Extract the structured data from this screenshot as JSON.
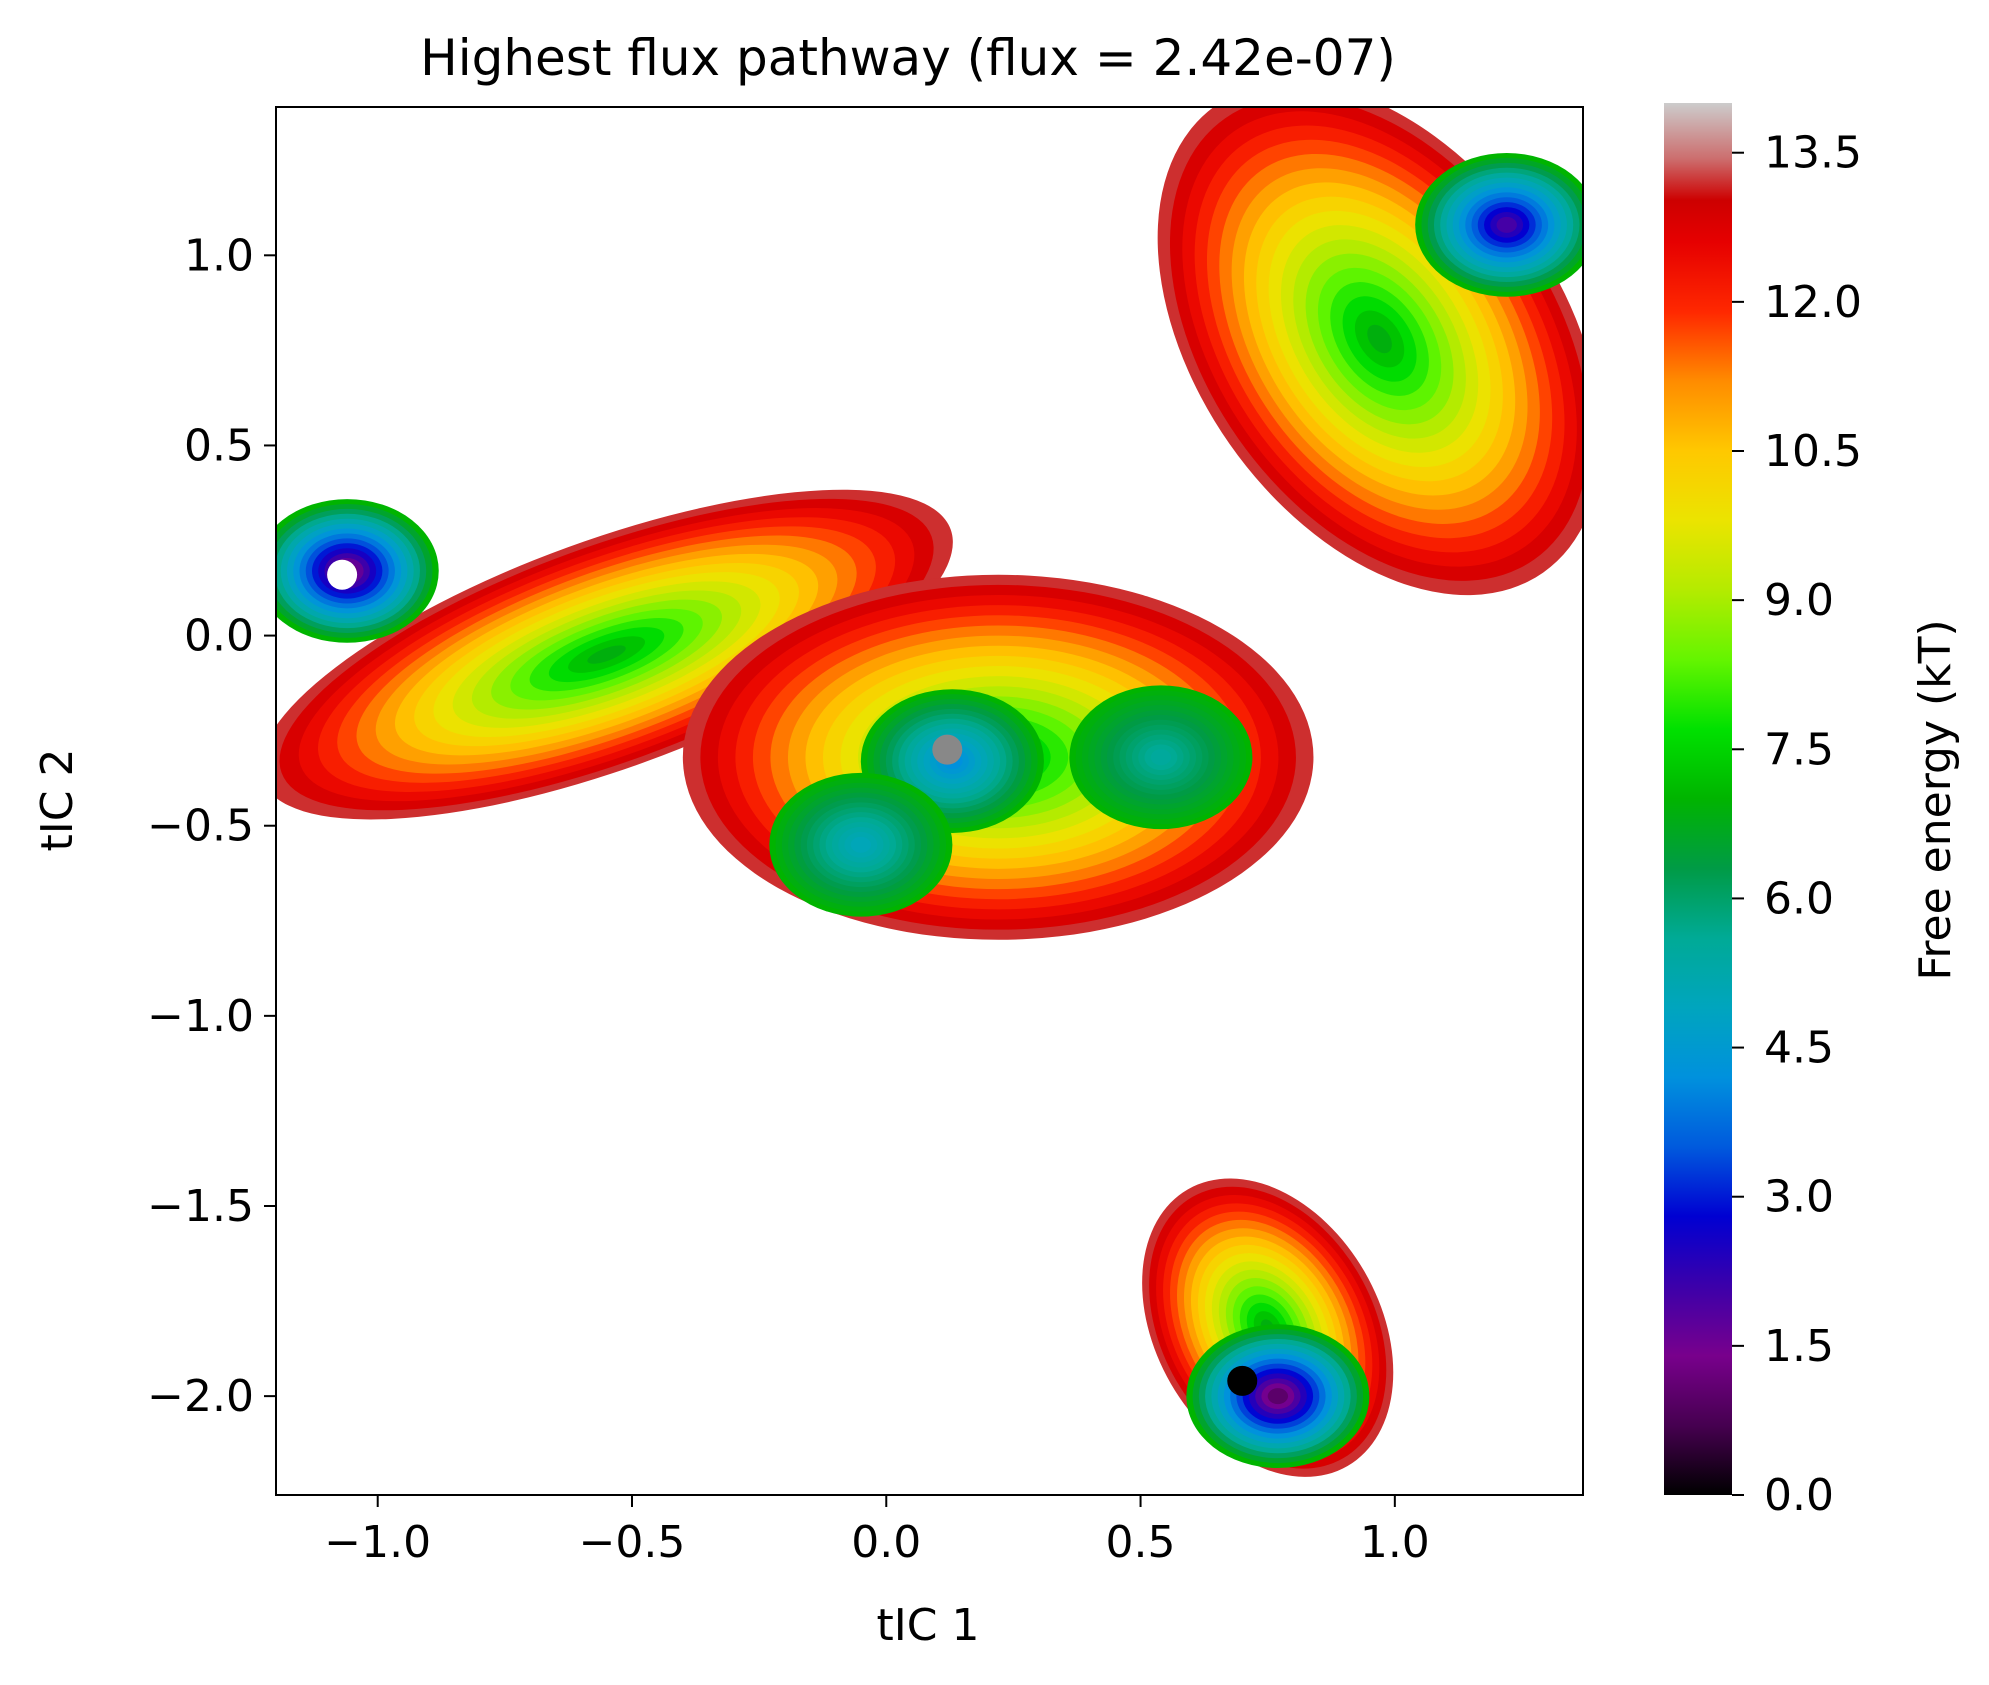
{
  "chart_data": {
    "type": "heatmap",
    "title": "Highest flux pathway (flux = 2.42e-07)",
    "xlabel": "tIC 1",
    "ylabel": "tIC 2",
    "xlim": [
      -1.2,
      1.37
    ],
    "ylim": [
      -2.26,
      1.39
    ],
    "xticks": [
      -1.0,
      -0.5,
      0.0,
      0.5,
      1.0
    ],
    "xtick_labels": [
      "−1.0",
      "−0.5",
      "0.0",
      "0.5",
      "1.0"
    ],
    "yticks": [
      1.0,
      0.5,
      0.0,
      -0.5,
      -1.0,
      -1.5,
      -2.0
    ],
    "ytick_labels": [
      "1.0",
      "0.5",
      "0.0",
      "−0.5",
      "−1.0",
      "−1.5",
      "−2.0"
    ],
    "grid": false,
    "colorbar": {
      "label": "Free energy (kT)",
      "range": [
        0.0,
        14.0
      ],
      "ticks": [
        0.0,
        1.5,
        3.0,
        4.5,
        6.0,
        7.5,
        9.0,
        10.5,
        12.0,
        13.5
      ],
      "tick_labels": [
        "0.0",
        "1.5",
        "3.0",
        "4.5",
        "6.0",
        "7.5",
        "9.0",
        "10.5",
        "12.0",
        "13.5"
      ],
      "colormap": "nipy_spectral"
    },
    "basins": [
      {
        "x": -1.06,
        "y": 0.17,
        "min_energy": 1.2
      },
      {
        "x": 0.13,
        "y": -0.33,
        "min_energy": 4.2
      },
      {
        "x": 1.22,
        "y": 1.08,
        "min_energy": 2.0
      },
      {
        "x": 0.77,
        "y": -2.0,
        "min_energy": 1.0
      },
      {
        "x": 0.54,
        "y": -0.32,
        "min_energy": 5.5
      },
      {
        "x": -0.05,
        "y": -0.55,
        "min_energy": 5.0
      }
    ],
    "pathway_points": [
      {
        "x": -1.07,
        "y": 0.16,
        "color": "#ffffff"
      },
      {
        "x": 0.12,
        "y": -0.3,
        "color": "#888888"
      },
      {
        "x": 0.7,
        "y": -1.96,
        "color": "#000000"
      }
    ]
  }
}
